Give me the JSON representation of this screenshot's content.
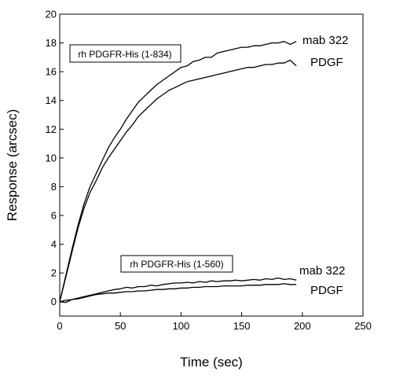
{
  "chart_data": {
    "type": "line",
    "title": "",
    "xlabel": "Time (sec)",
    "ylabel": "Response (arcsec)",
    "xlim": [
      0,
      250
    ],
    "ylim": [
      -1,
      20
    ],
    "x_ticks": [
      "0",
      "50",
      "100",
      "150",
      "200",
      "250"
    ],
    "y_ticks": [
      "0",
      "2",
      "4",
      "6",
      "8",
      "10",
      "12",
      "14",
      "16",
      "18",
      "20"
    ],
    "grid": false,
    "line_color": "#000000",
    "annotations": [
      {
        "text": "rh PDGFR-His (1-834)",
        "boxed": true
      },
      {
        "text": "rh PDGFR-His (1-560)",
        "boxed": true
      }
    ],
    "series": [
      {
        "name": "mab 322",
        "group": "rh PDGFR-His (1-834)",
        "x": [
          0,
          5,
          10,
          15,
          20,
          25,
          30,
          35,
          40,
          45,
          50,
          55,
          60,
          65,
          70,
          75,
          80,
          85,
          90,
          95,
          100,
          105,
          110,
          115,
          120,
          125,
          130,
          135,
          140,
          145,
          150,
          155,
          160,
          165,
          170,
          175,
          180,
          185,
          190,
          195
        ],
        "values": [
          0,
          1.8,
          3.6,
          5.3,
          6.8,
          8.0,
          8.9,
          9.8,
          10.7,
          11.4,
          12.0,
          12.7,
          13.3,
          13.9,
          14.3,
          14.7,
          15.1,
          15.4,
          15.7,
          16.0,
          16.3,
          16.4,
          16.7,
          16.8,
          17.0,
          17.0,
          17.3,
          17.4,
          17.5,
          17.6,
          17.7,
          17.7,
          17.8,
          17.8,
          17.9,
          18.0,
          18.0,
          18.1,
          17.9,
          18.1
        ]
      },
      {
        "name": "PDGF",
        "group": "rh PDGFR-His (1-834)",
        "x": [
          0,
          5,
          10,
          15,
          20,
          25,
          30,
          35,
          40,
          45,
          50,
          55,
          60,
          65,
          70,
          75,
          80,
          85,
          90,
          95,
          100,
          105,
          110,
          115,
          120,
          125,
          130,
          135,
          140,
          145,
          150,
          155,
          160,
          165,
          170,
          175,
          180,
          185,
          190,
          195
        ],
        "values": [
          0,
          1.7,
          3.4,
          5.1,
          6.5,
          7.6,
          8.4,
          9.3,
          10.0,
          10.6,
          11.2,
          11.8,
          12.3,
          12.9,
          13.3,
          13.7,
          14.1,
          14.4,
          14.7,
          14.9,
          15.1,
          15.3,
          15.4,
          15.5,
          15.6,
          15.7,
          15.8,
          15.9,
          16.0,
          16.1,
          16.2,
          16.3,
          16.3,
          16.4,
          16.5,
          16.5,
          16.6,
          16.6,
          16.8,
          16.4
        ]
      },
      {
        "name": "mab 322",
        "group": "rh PDGFR-His (1-560)",
        "x": [
          0,
          5,
          10,
          15,
          20,
          25,
          30,
          35,
          40,
          45,
          50,
          55,
          60,
          65,
          70,
          75,
          80,
          85,
          90,
          95,
          100,
          105,
          110,
          115,
          120,
          125,
          130,
          135,
          140,
          145,
          150,
          155,
          160,
          165,
          170,
          175,
          180,
          185,
          190,
          195
        ],
        "values": [
          0,
          0.1,
          0.15,
          0.25,
          0.35,
          0.45,
          0.55,
          0.65,
          0.75,
          0.85,
          0.9,
          1.0,
          0.95,
          1.05,
          1.05,
          1.15,
          1.1,
          1.2,
          1.25,
          1.3,
          1.3,
          1.35,
          1.3,
          1.4,
          1.35,
          1.45,
          1.4,
          1.45,
          1.45,
          1.5,
          1.45,
          1.5,
          1.55,
          1.5,
          1.6,
          1.55,
          1.65,
          1.55,
          1.6,
          1.5
        ]
      },
      {
        "name": "PDGF",
        "group": "rh PDGFR-His (1-560)",
        "x": [
          0,
          5,
          10,
          15,
          20,
          25,
          30,
          35,
          40,
          45,
          50,
          55,
          60,
          65,
          70,
          75,
          80,
          85,
          90,
          95,
          100,
          105,
          110,
          115,
          120,
          125,
          130,
          135,
          140,
          145,
          150,
          155,
          160,
          165,
          170,
          175,
          180,
          185,
          190,
          195
        ],
        "values": [
          0,
          -0.05,
          0.15,
          0.2,
          0.3,
          0.4,
          0.5,
          0.55,
          0.6,
          0.6,
          0.65,
          0.7,
          0.7,
          0.75,
          0.75,
          0.8,
          0.85,
          0.85,
          0.9,
          0.9,
          0.95,
          0.95,
          1.0,
          1.0,
          1.05,
          1.05,
          1.05,
          1.1,
          1.1,
          1.1,
          1.1,
          1.15,
          1.15,
          1.15,
          1.2,
          1.2,
          1.2,
          1.25,
          1.2,
          1.2
        ]
      }
    ]
  }
}
